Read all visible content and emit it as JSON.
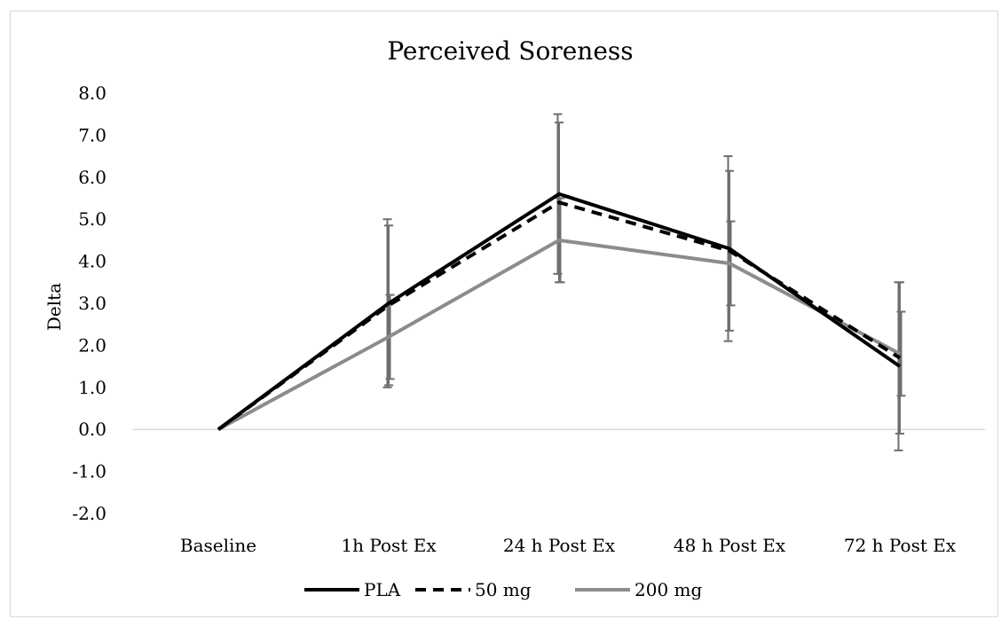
{
  "chart_data": {
    "type": "line",
    "title": "Perceived Soreness",
    "xlabel": "",
    "ylabel": "Delta",
    "categories": [
      "Baseline",
      "1h Post Ex",
      "24 h Post Ex",
      "48 h Post Ex",
      "72 h Post Ex"
    ],
    "ylim": [
      -2.0,
      8.0
    ],
    "yticks": [
      "8.0",
      "7.0",
      "6.0",
      "5.0",
      "4.0",
      "3.0",
      "2.0",
      "1.0",
      "0.0",
      "-1.0",
      "-2.0"
    ],
    "grid": false,
    "legend_position": "bottom",
    "series": [
      {
        "name": "PLA",
        "color": "#000000",
        "style": "solid",
        "values": [
          0.0,
          3.0,
          5.6,
          4.3,
          1.5
        ],
        "error": [
          null,
          2.0,
          1.9,
          2.2,
          2.0
        ]
      },
      {
        "name": "50 mg",
        "color": "#000000",
        "style": "dashed",
        "values": [
          0.0,
          2.95,
          5.4,
          4.25,
          1.7
        ],
        "error": [
          null,
          1.9,
          1.9,
          1.9,
          1.8
        ]
      },
      {
        "name": "200 mg",
        "color": "#8c8c8c",
        "style": "solid",
        "values": [
          0.0,
          2.2,
          4.5,
          3.95,
          1.8
        ],
        "error": [
          null,
          1.0,
          1.0,
          1.0,
          1.0
        ]
      }
    ]
  }
}
